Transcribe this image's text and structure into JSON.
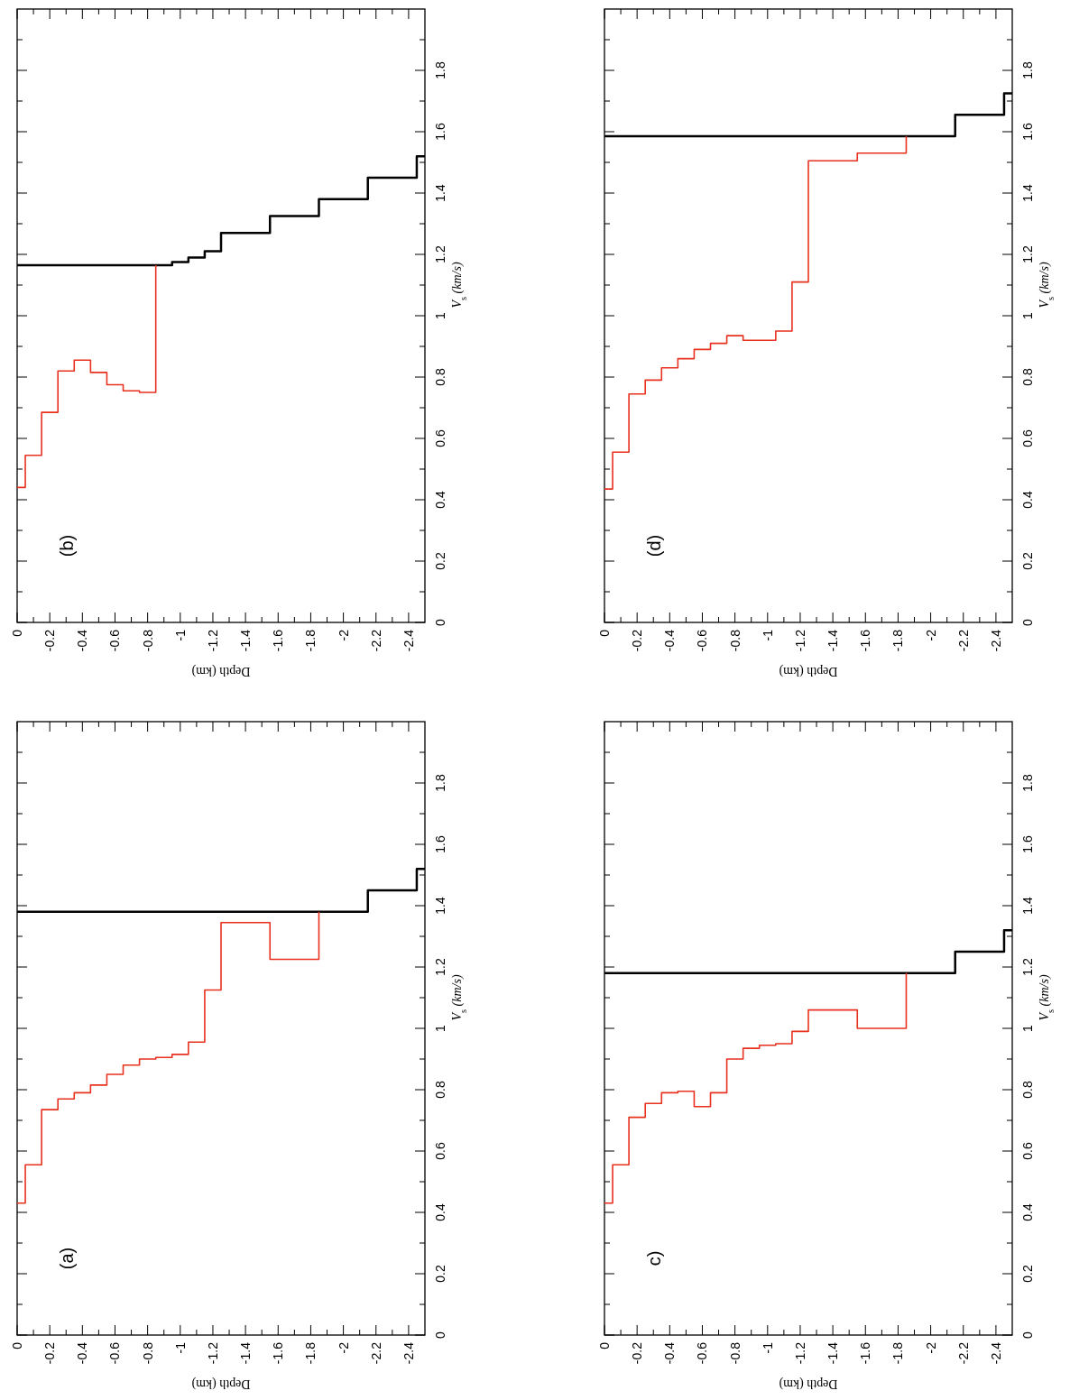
{
  "chart_data": [
    {
      "type": "step",
      "xlabel": "Depth (km)",
      "ylabel": "V$_{s}$ (km/s)",
      "annotations": [
        "(a)"
      ],
      "xlim": [
        0,
        -2.5
      ],
      "ylim": [
        0,
        2
      ],
      "xticks": [
        0,
        {
          "value": -0.1,
          "label": null
        },
        -0.2,
        {
          "value": -0.3,
          "label": null
        },
        -0.4,
        {
          "value": -0.5,
          "label": null
        },
        -0.6,
        {
          "value": -0.7,
          "label": null
        },
        -0.8,
        {
          "value": -0.9,
          "label": null
        },
        -1,
        {
          "value": -1.1,
          "label": null
        },
        -1.2,
        {
          "value": -1.3,
          "label": null
        },
        -1.4,
        {
          "value": -1.5,
          "label": null
        },
        -1.6,
        {
          "value": -1.7,
          "label": null
        },
        -1.8,
        {
          "value": -1.9,
          "label": null
        },
        -2,
        {
          "value": -2.1,
          "label": null
        },
        -2.2,
        {
          "value": -2.3,
          "label": null
        },
        -2.4
      ],
      "yticks": [
        0,
        {
          "value": 0.1,
          "label": null
        },
        0.2,
        {
          "value": 0.3,
          "label": null
        },
        0.4,
        {
          "value": 0.5,
          "label": null
        },
        0.6,
        {
          "value": 0.7,
          "label": null
        },
        0.8,
        {
          "value": 0.9,
          "label": null
        },
        1,
        {
          "value": 1.1,
          "label": null
        },
        1.2,
        {
          "value": 1.3,
          "label": null
        },
        1.4,
        {
          "value": 1.5,
          "label": null
        },
        1.6,
        {
          "value": 1.7,
          "label": null
        },
        1.8,
        {
          "value": 1.9,
          "label": null
        }
      ],
      "series": [
        {
          "color": "#000000",
          "x": [
            0,
            -2.15,
            -2.45,
            -2.5
          ],
          "values": [
            1.38,
            1.45,
            1.52,
            1.52
          ]
        },
        {
          "color": "#e8311f",
          "x": [
            0,
            -0.05,
            -0.15,
            -0.25,
            -0.35,
            -0.45,
            -0.55,
            -0.65,
            -0.75,
            -0.85,
            -0.95,
            -1.05,
            -1.15,
            -1.25,
            -1.55,
            -1.85
          ],
          "values": [
            0.43,
            0.555,
            0.735,
            0.77,
            0.79,
            0.815,
            0.85,
            0.88,
            0.9,
            0.905,
            0.915,
            0.955,
            1.125,
            1.345,
            1.225,
            1.38
          ]
        }
      ]
    },
    {
      "type": "step",
      "xlabel": "Depth (km)",
      "ylabel": "V$_{s}$ (km/s)",
      "annotations": [
        "(b)"
      ],
      "xlim": [
        0,
        -2.5
      ],
      "ylim": [
        0,
        2
      ],
      "xticks": [
        0,
        {
          "value": -0.1,
          "label": null
        },
        -0.2,
        {
          "value": -0.3,
          "label": null
        },
        -0.4,
        {
          "value": -0.5,
          "label": null
        },
        -0.6,
        {
          "value": -0.7,
          "label": null
        },
        -0.8,
        {
          "value": -0.9,
          "label": null
        },
        -1,
        {
          "value": -1.1,
          "label": null
        },
        -1.2,
        {
          "value": -1.3,
          "label": null
        },
        -1.4,
        {
          "value": -1.5,
          "label": null
        },
        -1.6,
        {
          "value": -1.7,
          "label": null
        },
        -1.8,
        {
          "value": -1.9,
          "label": null
        },
        -2,
        {
          "value": -2.1,
          "label": null
        },
        -2.2,
        {
          "value": -2.3,
          "label": null
        },
        -2.4
      ],
      "yticks": [
        0,
        {
          "value": 0.1,
          "label": null
        },
        0.2,
        {
          "value": 0.3,
          "label": null
        },
        0.4,
        {
          "value": 0.5,
          "label": null
        },
        0.6,
        {
          "value": 0.7,
          "label": null
        },
        0.8,
        {
          "value": 0.9,
          "label": null
        },
        1,
        {
          "value": 1.1,
          "label": null
        },
        1.2,
        {
          "value": 1.3,
          "label": null
        },
        1.4,
        {
          "value": 1.5,
          "label": null
        },
        1.6,
        {
          "value": 1.7,
          "label": null
        },
        1.8,
        {
          "value": 1.9,
          "label": null
        }
      ],
      "series": [
        {
          "color": "#000000",
          "x": [
            0,
            -0.95,
            -1.05,
            -1.15,
            -1.25,
            -1.55,
            -1.85,
            -2.15,
            -2.45,
            -2.5
          ],
          "values": [
            1.165,
            1.175,
            1.19,
            1.21,
            1.27,
            1.325,
            1.38,
            1.45,
            1.52,
            1.52
          ]
        },
        {
          "color": "#e8311f",
          "x": [
            0,
            -0.05,
            -0.15,
            -0.25,
            -0.35,
            -0.45,
            -0.55,
            -0.65,
            -0.75,
            -0.85
          ],
          "values": [
            0.44,
            0.545,
            0.685,
            0.82,
            0.855,
            0.815,
            0.775,
            0.755,
            0.75,
            1.165
          ]
        }
      ]
    },
    {
      "type": "step",
      "xlabel": "Depth (km)",
      "ylabel": "V$_{s}$ (km/s)",
      "annotations": [
        "c)"
      ],
      "xlim": [
        0,
        -2.5
      ],
      "ylim": [
        0,
        2
      ],
      "xticks": [
        0,
        {
          "value": -0.1,
          "label": null
        },
        -0.2,
        {
          "value": -0.3,
          "label": null
        },
        -0.4,
        {
          "value": -0.5,
          "label": null
        },
        -0.6,
        {
          "value": -0.7,
          "label": null
        },
        -0.8,
        {
          "value": -0.9,
          "label": null
        },
        -1,
        {
          "value": -1.1,
          "label": null
        },
        -1.2,
        {
          "value": -1.3,
          "label": null
        },
        -1.4,
        {
          "value": -1.5,
          "label": null
        },
        -1.6,
        {
          "value": -1.7,
          "label": null
        },
        -1.8,
        {
          "value": -1.9,
          "label": null
        },
        -2,
        {
          "value": -2.1,
          "label": null
        },
        -2.2,
        {
          "value": -2.3,
          "label": null
        },
        -2.4
      ],
      "yticks": [
        0,
        {
          "value": 0.1,
          "label": null
        },
        0.2,
        {
          "value": 0.3,
          "label": null
        },
        0.4,
        {
          "value": 0.5,
          "label": null
        },
        0.6,
        {
          "value": 0.7,
          "label": null
        },
        0.8,
        {
          "value": 0.9,
          "label": null
        },
        1,
        {
          "value": 1.1,
          "label": null
        },
        1.2,
        {
          "value": 1.3,
          "label": null
        },
        1.4,
        {
          "value": 1.5,
          "label": null
        },
        1.6,
        {
          "value": 1.7,
          "label": null
        },
        1.8,
        {
          "value": 1.9,
          "label": null
        }
      ],
      "series": [
        {
          "color": "#000000",
          "x": [
            0,
            -2.15,
            -2.45,
            -2.5
          ],
          "values": [
            1.18,
            1.25,
            1.32,
            1.32
          ]
        },
        {
          "color": "#e8311f",
          "x": [
            0,
            -0.05,
            -0.15,
            -0.25,
            -0.35,
            -0.45,
            -0.55,
            -0.65,
            -0.75,
            -0.85,
            -0.95,
            -1.05,
            -1.15,
            -1.25,
            -1.55,
            -1.85
          ],
          "values": [
            0.43,
            0.555,
            0.71,
            0.755,
            0.79,
            0.795,
            0.745,
            0.79,
            0.9,
            0.935,
            0.945,
            0.95,
            0.99,
            1.06,
            1.0,
            1.18
          ]
        }
      ]
    },
    {
      "type": "step",
      "xlabel": "Depth (km)",
      "ylabel": "V$_{s}$ (km/s)",
      "annotations": [
        "(d)"
      ],
      "xlim": [
        0,
        -2.5
      ],
      "ylim": [
        0,
        2
      ],
      "xticks": [
        0,
        {
          "value": -0.1,
          "label": null
        },
        -0.2,
        {
          "value": -0.3,
          "label": null
        },
        -0.4,
        {
          "value": -0.5,
          "label": null
        },
        -0.6,
        {
          "value": -0.7,
          "label": null
        },
        -0.8,
        {
          "value": -0.9,
          "label": null
        },
        -1,
        {
          "value": -1.1,
          "label": null
        },
        -1.2,
        {
          "value": -1.3,
          "label": null
        },
        -1.4,
        {
          "value": -1.5,
          "label": null
        },
        -1.6,
        {
          "value": -1.7,
          "label": null
        },
        -1.8,
        {
          "value": -1.9,
          "label": null
        },
        -2,
        {
          "value": -2.1,
          "label": null
        },
        -2.2,
        {
          "value": -2.3,
          "label": null
        },
        -2.4
      ],
      "yticks": [
        0,
        {
          "value": 0.1,
          "label": null
        },
        0.2,
        {
          "value": 0.3,
          "label": null
        },
        0.4,
        {
          "value": 0.5,
          "label": null
        },
        0.6,
        {
          "value": 0.7,
          "label": null
        },
        0.8,
        {
          "value": 0.9,
          "label": null
        },
        1,
        {
          "value": 1.1,
          "label": null
        },
        1.2,
        {
          "value": 1.3,
          "label": null
        },
        1.4,
        {
          "value": 1.5,
          "label": null
        },
        1.6,
        {
          "value": 1.7,
          "label": null
        },
        1.8,
        {
          "value": 1.9,
          "label": null
        }
      ],
      "series": [
        {
          "color": "#000000",
          "x": [
            0,
            -2.15,
            -2.45,
            -2.5
          ],
          "values": [
            1.585,
            1.655,
            1.725,
            1.725
          ]
        },
        {
          "color": "#e8311f",
          "x": [
            0,
            -0.05,
            -0.15,
            -0.25,
            -0.35,
            -0.45,
            -0.55,
            -0.65,
            -0.75,
            -0.85,
            -1.05,
            -1.15,
            -1.25,
            -1.55,
            -1.85
          ],
          "values": [
            0.435,
            0.555,
            0.745,
            0.79,
            0.83,
            0.86,
            0.89,
            0.91,
            0.935,
            0.92,
            0.95,
            1.11,
            1.505,
            1.53,
            1.585
          ]
        }
      ]
    }
  ]
}
